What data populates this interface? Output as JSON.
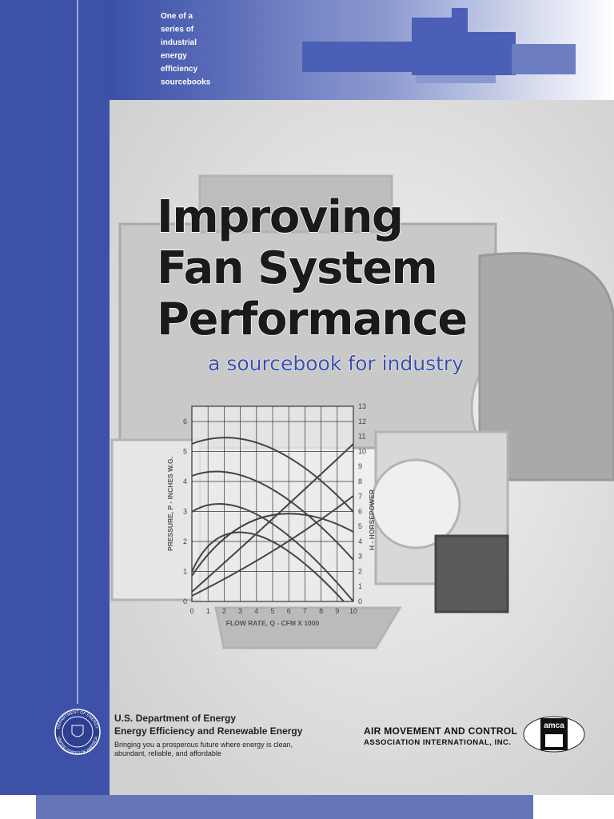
{
  "series_note": {
    "lines": [
      "One of a",
      "series of",
      "industrial",
      "energy",
      "efficiency",
      "sourcebooks"
    ]
  },
  "title": {
    "lines": [
      "Improving",
      "Fan System",
      "Performance"
    ],
    "subtitle": "a sourcebook for industry"
  },
  "figure": {
    "y_label": "PRESSURE, P - INCHES W.G.",
    "y_ticks": [
      0,
      1,
      2,
      3,
      4,
      5,
      6
    ],
    "y2_label": "H - HORSEPOWER",
    "y2_ticks": [
      0,
      1,
      2,
      3,
      4,
      5,
      6,
      7,
      8,
      9,
      10,
      11,
      12,
      13
    ],
    "x_label": "FLOW RATE, Q - CFM X 1000",
    "x_ticks": [
      0,
      1,
      2,
      3,
      4,
      5,
      6,
      7,
      8,
      9,
      10
    ]
  },
  "footer": {
    "agency": "U.S. Department of Energy",
    "office": "Energy Efficiency and Renewable Energy",
    "tagline_lines": [
      "Bringing you a prosperous future where energy is clean,",
      "abundant, reliable, and affordable"
    ],
    "seal_text": [
      "DEPARTMENT OF ENERGY",
      "UNITED STATES OF AMERICA"
    ]
  },
  "partner": {
    "lines": [
      "AIR MOVEMENT AND CONTROL",
      "ASSOCIATION INTERNATIONAL, INC."
    ],
    "logo": "amca"
  }
}
